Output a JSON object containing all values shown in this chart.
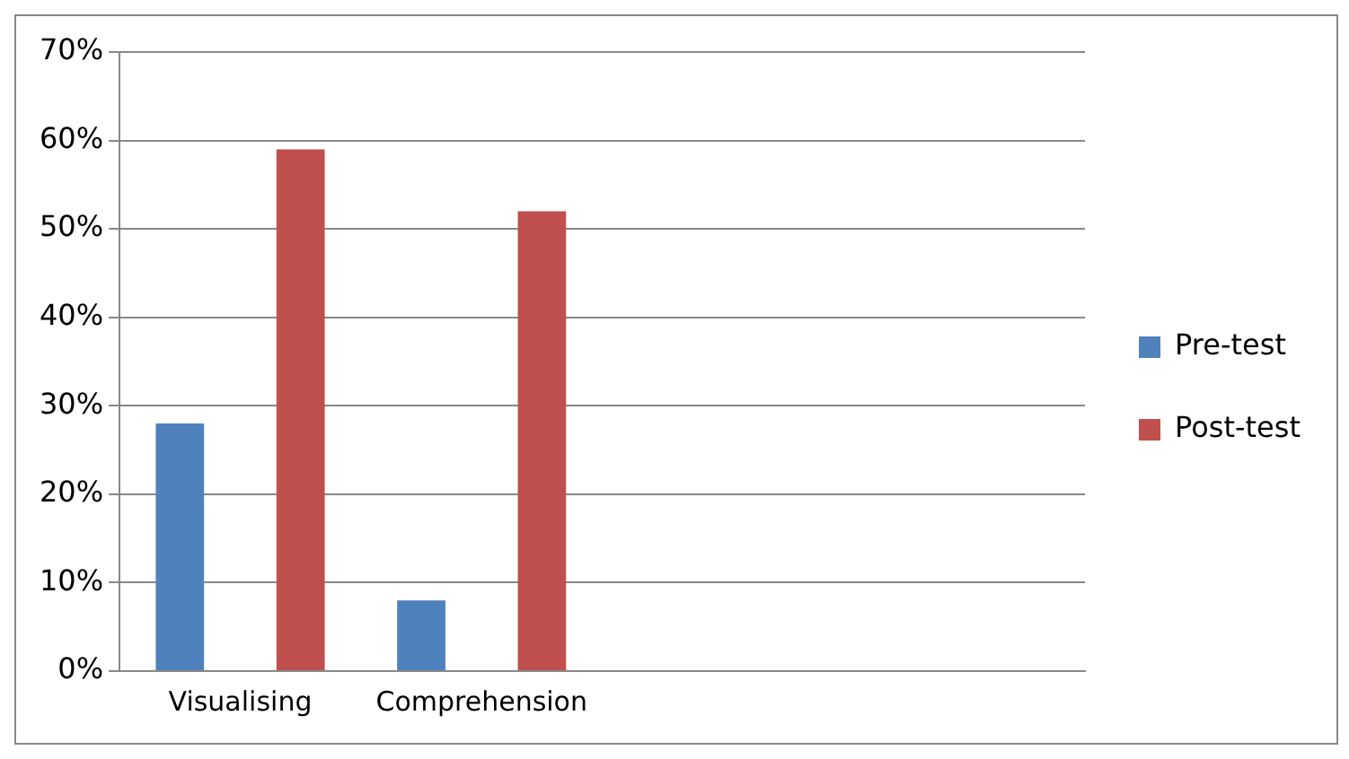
{
  "chart_data": {
    "type": "bar",
    "categories": [
      "Visualising",
      "Comprehension",
      null,
      null
    ],
    "series": [
      {
        "name": "Pre-test",
        "color": "#4f81bd",
        "values": [
          28,
          8,
          null,
          null
        ]
      },
      {
        "name": "Post-test",
        "color": "#c0504d",
        "values": [
          59,
          52,
          null,
          null
        ]
      }
    ],
    "ylim": [
      0,
      70
    ],
    "yticks": [
      {
        "value": 0,
        "label": "0%"
      },
      {
        "value": 10,
        "label": "10%"
      },
      {
        "value": 20,
        "label": "20%"
      },
      {
        "value": 30,
        "label": "30%"
      },
      {
        "value": 40,
        "label": "40%"
      },
      {
        "value": 50,
        "label": "50%"
      },
      {
        "value": 60,
        "label": "60%"
      },
      {
        "value": 70,
        "label": "70%"
      }
    ],
    "grid": "y",
    "legend": "right"
  }
}
